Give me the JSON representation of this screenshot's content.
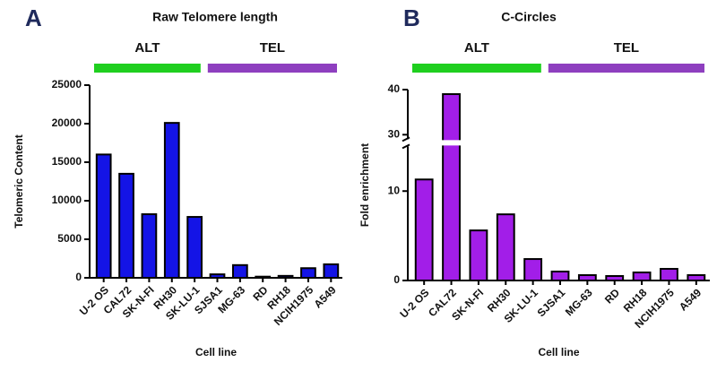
{
  "chart_data": [
    {
      "type": "bar",
      "panel": "A",
      "title": "Raw Telomere length",
      "xlabel": "Cell line",
      "ylabel": "Telomeric Content",
      "categories": [
        "U-2 OS",
        "CAL72",
        "SK-N-FI",
        "RH30",
        "SK-LU-1",
        "SJSA1",
        "MG-63",
        "RD",
        "RH18",
        "NCIH1975",
        "A549"
      ],
      "values": [
        16000,
        13500,
        8250,
        20100,
        7900,
        450,
        1650,
        150,
        250,
        1250,
        1750
      ],
      "color": "#1414e6",
      "ylim": [
        0,
        25000
      ],
      "yticks": [
        0,
        5000,
        10000,
        15000,
        20000,
        25000
      ],
      "groups": [
        {
          "label": "ALT",
          "color": "#1fcf1f",
          "count": 5
        },
        {
          "label": "TEL",
          "color": "#8e3fbf",
          "count": 6
        }
      ]
    },
    {
      "type": "bar",
      "panel": "B",
      "title": "C-Circles",
      "xlabel": "Cell line",
      "ylabel": "Fold enrichment",
      "categories": [
        "U-2 OS",
        "CAL72",
        "SK-N-FI",
        "RH30",
        "SK-LU-1",
        "SJSA1",
        "MG-63",
        "RD",
        "RH18",
        "NCIH1975",
        "A549"
      ],
      "values": [
        11.3,
        39,
        5.6,
        7.4,
        2.4,
        1.0,
        0.6,
        0.5,
        0.9,
        1.3,
        0.6
      ],
      "color": "#a21ee8",
      "ylim": [
        0,
        40
      ],
      "yticks": [
        0,
        10,
        30,
        40
      ],
      "axis_break": [
        15,
        29
      ],
      "groups": [
        {
          "label": "ALT",
          "color": "#1fcf1f",
          "count": 5
        },
        {
          "label": "TEL",
          "color": "#8e3fbf",
          "count": 6
        }
      ]
    }
  ]
}
